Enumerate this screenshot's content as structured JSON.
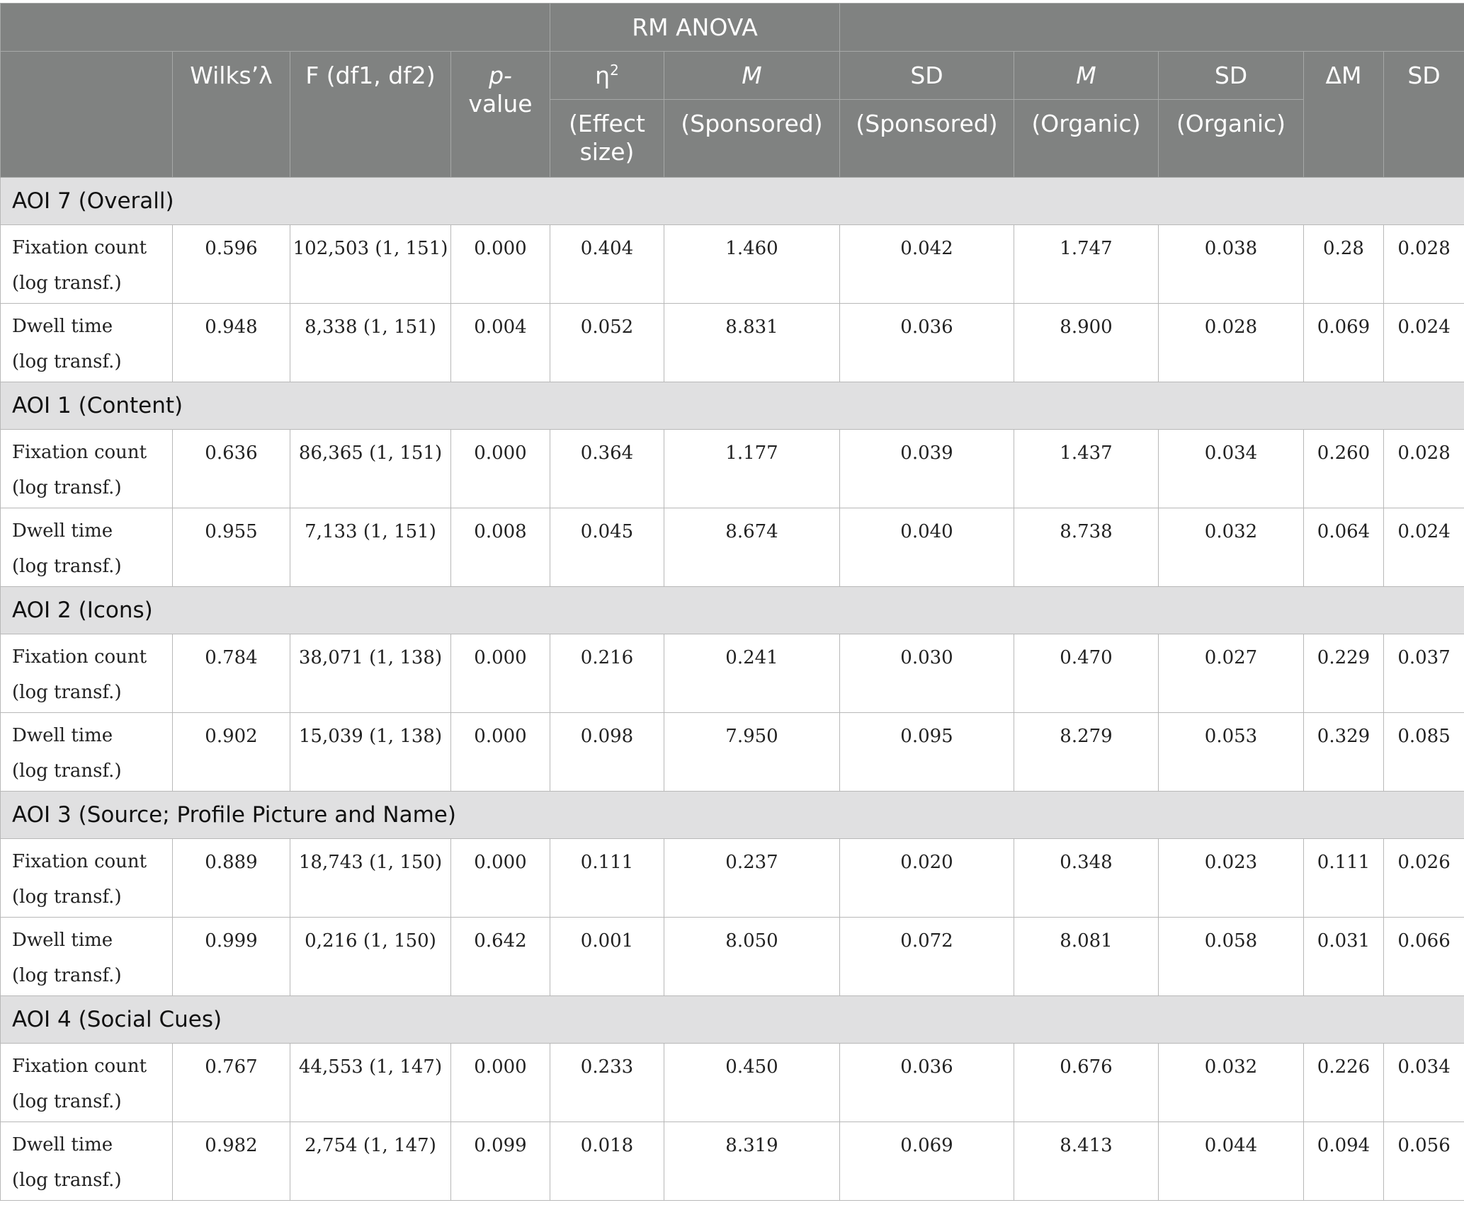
{
  "header": {
    "group_label": "RM ANOVA",
    "wilks": "Wilks’λ",
    "f": "F (df1, df2)",
    "p_line1": "p-",
    "p_line2": "value",
    "eta": "η",
    "eta_sup": "2",
    "eta_sub_line1": "(Effect",
    "eta_sub_line2": "size)",
    "m_sponsored_top": "M",
    "m_sponsored_bottom": "(Sponsored)",
    "sd_sponsored_top": "SD",
    "sd_sponsored_bottom": "(Sponsored)",
    "m_organic_top": "M",
    "m_organic_bottom": "(Organic)",
    "sd_organic_top": "SD",
    "sd_organic_bottom": "(Organic)",
    "delta_m": "ΔM",
    "sd": "SD"
  },
  "sections": [
    {
      "title": "AOI 7 (Overall)",
      "rows": [
        {
          "label1": "Fixation count",
          "label2": "(log transf.)",
          "cells": [
            "0.596",
            "102,503 (1, 151)",
            "0.000",
            "0.404",
            "1.460",
            "0.042",
            "1.747",
            "0.038",
            "0.28",
            "0.028"
          ]
        },
        {
          "label1": "Dwell time",
          "label2": "(log transf.)",
          "cells": [
            "0.948",
            "8,338 (1, 151)",
            "0.004",
            "0.052",
            "8.831",
            "0.036",
            "8.900",
            "0.028",
            "0.069",
            "0.024"
          ]
        }
      ]
    },
    {
      "title": "AOI 1 (Content)",
      "rows": [
        {
          "label1": "Fixation count",
          "label2": "(log transf.)",
          "cells": [
            "0.636",
            "86,365 (1, 151)",
            "0.000",
            "0.364",
            "1.177",
            "0.039",
            "1.437",
            "0.034",
            "0.260",
            "0.028"
          ]
        },
        {
          "label1": "Dwell time",
          "label2": "(log transf.)",
          "cells": [
            "0.955",
            "7,133 (1, 151)",
            "0.008",
            "0.045",
            "8.674",
            "0.040",
            "8.738",
            "0.032",
            "0.064",
            "0.024"
          ]
        }
      ]
    },
    {
      "title": "AOI 2 (Icons)",
      "rows": [
        {
          "label1": "Fixation count",
          "label2": "(log transf.)",
          "cells": [
            "0.784",
            "38,071 (1, 138)",
            "0.000",
            "0.216",
            "0.241",
            "0.030",
            "0.470",
            "0.027",
            "0.229",
            "0.037"
          ]
        },
        {
          "label1": "Dwell time",
          "label2": "(log transf.)",
          "cells": [
            "0.902",
            "15,039 (1, 138)",
            "0.000",
            "0.098",
            "7.950",
            "0.095",
            "8.279",
            "0.053",
            "0.329",
            "0.085"
          ]
        }
      ]
    },
    {
      "title": "AOI 3 (Source; Profile Picture and Name)",
      "rows": [
        {
          "label1": "Fixation count",
          "label2": "(log transf.)",
          "cells": [
            "0.889",
            "18,743 (1, 150)",
            "0.000",
            "0.111",
            "0.237",
            "0.020",
            "0.348",
            "0.023",
            "0.111",
            "0.026"
          ]
        },
        {
          "label1": "Dwell time",
          "label2": "(log transf.)",
          "cells": [
            "0.999",
            "0,216 (1, 150)",
            "0.642",
            "0.001",
            "8.050",
            "0.072",
            "8.081",
            "0.058",
            "0.031",
            "0.066"
          ]
        }
      ]
    },
    {
      "title": "AOI 4 (Social Cues)",
      "rows": [
        {
          "label1": "Fixation count",
          "label2": "(log transf.)",
          "cells": [
            "0.767",
            "44,553 (1, 147)",
            "0.000",
            "0.233",
            "0.450",
            "0.036",
            "0.676",
            "0.032",
            "0.226",
            "0.034"
          ]
        },
        {
          "label1": "Dwell time",
          "label2": "(log transf.)",
          "cells": [
            "0.982",
            "2,754 (1, 147)",
            "0.099",
            "0.018",
            "8.319",
            "0.069",
            "8.413",
            "0.044",
            "0.094",
            "0.056"
          ]
        }
      ]
    }
  ]
}
